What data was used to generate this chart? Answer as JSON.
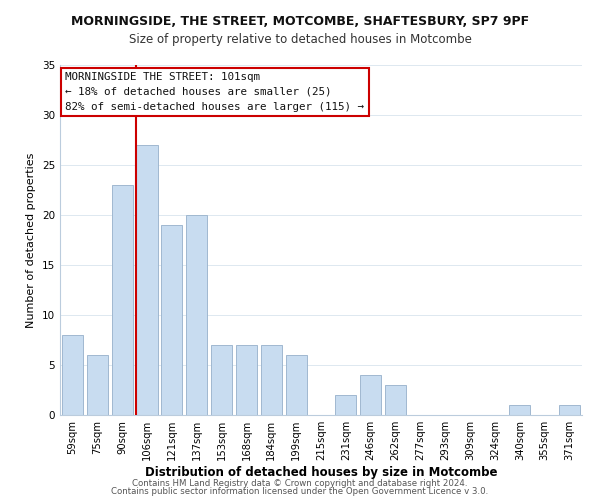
{
  "title1": "MORNINGSIDE, THE STREET, MOTCOMBE, SHAFTESBURY, SP7 9PF",
  "title2": "Size of property relative to detached houses in Motcombe",
  "xlabel": "Distribution of detached houses by size in Motcombe",
  "ylabel": "Number of detached properties",
  "footer1": "Contains HM Land Registry data © Crown copyright and database right 2024.",
  "footer2": "Contains public sector information licensed under the Open Government Licence v 3.0.",
  "bar_labels": [
    "59sqm",
    "75sqm",
    "90sqm",
    "106sqm",
    "121sqm",
    "137sqm",
    "153sqm",
    "168sqm",
    "184sqm",
    "199sqm",
    "215sqm",
    "231sqm",
    "246sqm",
    "262sqm",
    "277sqm",
    "293sqm",
    "309sqm",
    "324sqm",
    "340sqm",
    "355sqm",
    "371sqm"
  ],
  "bar_values": [
    8,
    6,
    23,
    27,
    19,
    20,
    7,
    7,
    7,
    6,
    0,
    2,
    4,
    3,
    0,
    0,
    0,
    0,
    1,
    0,
    1
  ],
  "bar_color": "#c8dcf0",
  "bar_edgecolor": "#a0b8d0",
  "ylim": [
    0,
    35
  ],
  "yticks": [
    0,
    5,
    10,
    15,
    20,
    25,
    30,
    35
  ],
  "vline_color": "#cc0000",
  "annotation_title": "MORNINGSIDE THE STREET: 101sqm",
  "annotation_line1": "← 18% of detached houses are smaller (25)",
  "annotation_line2": "82% of semi-detached houses are larger (115) →",
  "bg_color": "#ffffff",
  "grid_color": "#dde8f0"
}
